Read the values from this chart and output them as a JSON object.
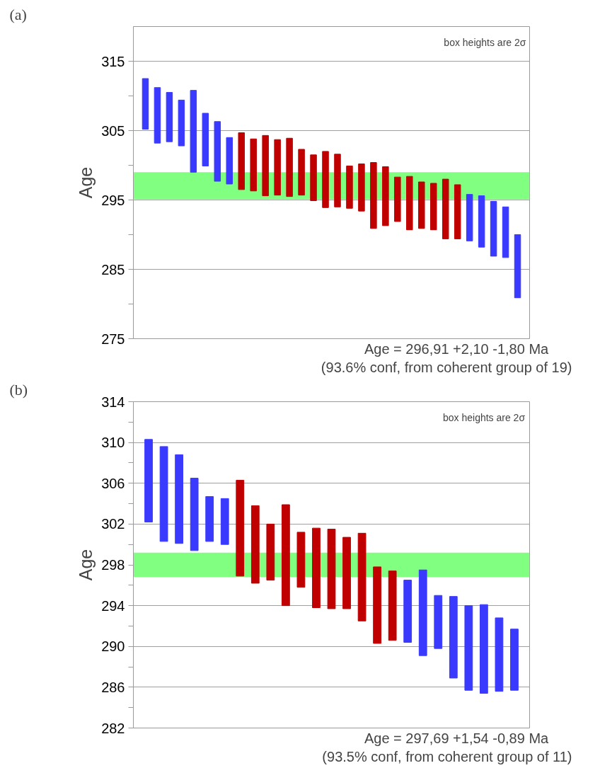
{
  "chart_data": [
    {
      "type": "bar",
      "ylabel": "Age",
      "tick_labels": "y",
      "grid": "y",
      "categories": [
        null,
        null,
        null,
        null,
        null,
        null,
        null,
        null,
        null,
        null,
        null,
        null,
        null,
        null,
        null,
        null,
        null,
        null,
        null,
        null,
        null,
        null,
        null,
        null,
        null,
        null,
        null,
        null,
        null,
        null,
        null,
        null
      ],
      "base": [
        305.2,
        303.2,
        303.4,
        302.8,
        299.0,
        299.9,
        297.7,
        297.3,
        296.5,
        296.3,
        295.6,
        295.7,
        295.5,
        295.7,
        294.9,
        293.9,
        294.0,
        293.8,
        293.4,
        290.9,
        291.3,
        291.9,
        290.7,
        290.9,
        290.7,
        289.4,
        289.4,
        289.1,
        288.2,
        286.9,
        286.7,
        280.9
      ],
      "values": [
        7.3,
        8.0,
        7.1,
        6.6,
        11.8,
        7.6,
        8.6,
        6.7,
        8.2,
        7.5,
        8.7,
        8.0,
        8.4,
        6.6,
        6.6,
        8.1,
        7.6,
        6.1,
        6.8,
        9.5,
        8.5,
        6.4,
        7.7,
        6.7,
        6.7,
        8.6,
        7.8,
        6.7,
        7.4,
        7.9,
        7.3,
        9.1
      ],
      "colors": [
        "#3a3aff",
        "#3a3aff",
        "#3a3aff",
        "#3a3aff",
        "#3a3aff",
        "#3a3aff",
        "#3a3aff",
        "#3a3aff",
        "#c00000",
        "#c00000",
        "#c00000",
        "#c00000",
        "#c00000",
        "#c00000",
        "#c00000",
        "#c00000",
        "#c00000",
        "#c00000",
        "#c00000",
        "#c00000",
        "#c00000",
        "#c00000",
        "#c00000",
        "#c00000",
        "#c00000",
        "#c00000",
        "#c00000",
        "#3a3aff",
        "#3a3aff",
        "#3a3aff",
        "#3a3aff",
        "#3a3aff"
      ],
      "ylim": [
        275,
        320
      ],
      "yticks": [
        275,
        {
          "value": 280,
          "label": null
        },
        285,
        {
          "value": 290,
          "label": null
        },
        295,
        {
          "value": 300,
          "label": null
        },
        305,
        {
          "value": 310,
          "label": null
        },
        315
      ],
      "bands": [
        {
          "axis": "y",
          "from": 295.1,
          "to": 299.0,
          "label": null,
          "color": "#80ff80"
        }
      ],
      "annotations": [
        "(a)",
        "box heights are 2σ",
        "Age  = 296,91   +2,10   -1,80  Ma",
        "(93.6% conf, from coherent group of 19)"
      ]
    },
    {
      "type": "bar",
      "ylabel": "Age",
      "tick_labels": "y",
      "grid": "y",
      "categories": [
        null,
        null,
        null,
        null,
        null,
        null,
        null,
        null,
        null,
        null,
        null,
        null,
        null,
        null,
        null,
        null,
        null,
        null,
        null,
        null,
        null,
        null,
        null,
        null,
        null
      ],
      "base": [
        302.2,
        300.3,
        300.1,
        299.4,
        300.3,
        300.0,
        296.9,
        296.2,
        296.5,
        294.0,
        295.8,
        293.8,
        293.7,
        293.7,
        292.5,
        290.3,
        290.6,
        290.4,
        289.1,
        289.8,
        286.9,
        285.7,
        285.4,
        285.6,
        285.7
      ],
      "values": [
        8.1,
        9.3,
        8.7,
        7.1,
        4.4,
        4.5,
        9.4,
        7.6,
        5.5,
        9.9,
        5.4,
        7.8,
        7.8,
        7.0,
        8.6,
        7.5,
        6.8,
        6.1,
        8.4,
        5.2,
        8.0,
        8.3,
        8.7,
        7.2,
        6.0
      ],
      "colors": [
        "#3a3aff",
        "#3a3aff",
        "#3a3aff",
        "#3a3aff",
        "#3a3aff",
        "#3a3aff",
        "#c00000",
        "#c00000",
        "#c00000",
        "#c00000",
        "#c00000",
        "#c00000",
        "#c00000",
        "#c00000",
        "#c00000",
        "#c00000",
        "#c00000",
        "#3a3aff",
        "#3a3aff",
        "#3a3aff",
        "#3a3aff",
        "#3a3aff",
        "#3a3aff",
        "#3a3aff",
        "#3a3aff"
      ],
      "ylim": [
        282,
        314
      ],
      "yticks": [
        282,
        {
          "value": 284,
          "label": null
        },
        286,
        {
          "value": 288,
          "label": null
        },
        290,
        {
          "value": 292,
          "label": null
        },
        294,
        {
          "value": 296,
          "label": null
        },
        298,
        {
          "value": 300,
          "label": null
        },
        302,
        {
          "value": 304,
          "label": null
        },
        306,
        {
          "value": 308,
          "label": null
        },
        310,
        {
          "value": 312,
          "label": null
        },
        314
      ],
      "bands": [
        {
          "axis": "y",
          "from": 296.8,
          "to": 299.2,
          "label": null,
          "color": "#80ff80"
        }
      ],
      "annotations": [
        "(b)",
        "box heights are 2σ",
        "Age  = 297,69   +1,54   -0,89  Ma",
        "(93.5% conf, from coherent group of 11)"
      ]
    }
  ]
}
